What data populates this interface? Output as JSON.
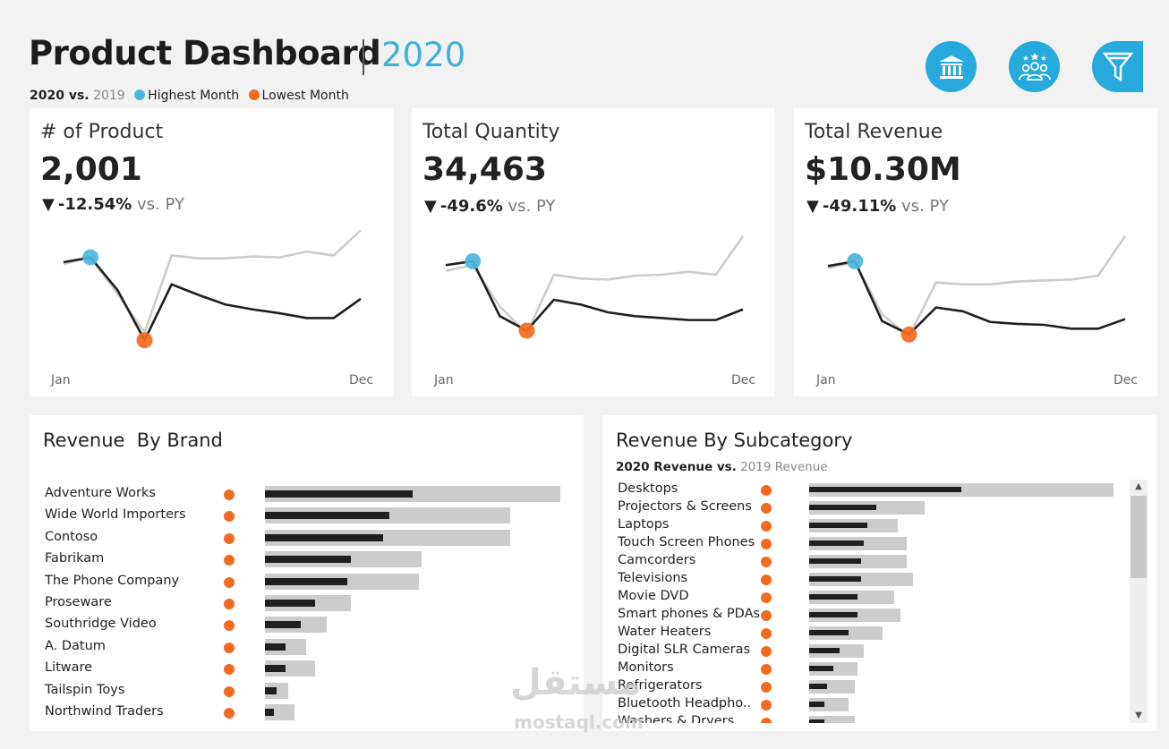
{
  "header": {
    "title": "Product Dashboard",
    "year": "2020",
    "legend": {
      "current": "2020 vs.",
      "previous": "2019",
      "highest": "Highest Month",
      "lowest": "Lowest Month"
    },
    "icons": [
      "bank-icon",
      "team-icon",
      "filter-icon"
    ]
  },
  "colors": {
    "accent": "#26a9dc",
    "highest": "#4cb6de",
    "lowest": "#f26b21",
    "current_line": "#1f1f1f",
    "previous_line": "#cccccc"
  },
  "kpis": [
    {
      "label": "# of Product",
      "value": "2,001",
      "delta": "-12.54%",
      "vs": "vs. PY",
      "axis_start": "Jan",
      "axis_end": "Dec",
      "cy": [
        0.91,
        0.96,
        0.62,
        0.1,
        0.68,
        0.57,
        0.47,
        0.42,
        0.38,
        0.33,
        0.33,
        0.53
      ],
      "py": [
        0.89,
        0.96,
        0.58,
        0.18,
        0.98,
        0.95,
        0.95,
        0.97,
        0.96,
        1.02,
        0.98,
        1.24
      ],
      "high_index": 1,
      "low_index": 3
    },
    {
      "label": "Total Quantity",
      "value": "34,463",
      "delta": "-49.6%",
      "vs": "vs. PY",
      "axis_start": "Jan",
      "axis_end": "Dec",
      "cy": [
        0.88,
        0.92,
        0.35,
        0.2,
        0.52,
        0.47,
        0.39,
        0.35,
        0.33,
        0.31,
        0.31,
        0.42
      ],
      "py": [
        0.82,
        0.88,
        0.45,
        0.17,
        0.78,
        0.74,
        0.73,
        0.77,
        0.78,
        0.81,
        0.78,
        1.18
      ],
      "high_index": 1,
      "low_index": 3
    },
    {
      "label": "Total Revenue",
      "value": "$10.30M",
      "delta": "-49.11%",
      "vs": "vs. PY",
      "axis_start": "Jan",
      "axis_end": "Dec",
      "cy": [
        0.87,
        0.92,
        0.3,
        0.16,
        0.44,
        0.4,
        0.29,
        0.27,
        0.26,
        0.22,
        0.22,
        0.32
      ],
      "py": [
        0.85,
        0.91,
        0.37,
        0.14,
        0.7,
        0.68,
        0.68,
        0.71,
        0.72,
        0.73,
        0.77,
        1.18
      ],
      "high_index": 1,
      "low_index": 3
    }
  ],
  "brand": {
    "title": "Revenue  By Brand",
    "max": 100,
    "rows": [
      {
        "name": "Adventure Works",
        "cy": 50,
        "py": 100
      },
      {
        "name": "Wide World Importers",
        "cy": 42,
        "py": 83
      },
      {
        "name": "Contoso",
        "cy": 40,
        "py": 83
      },
      {
        "name": "Fabrikam",
        "cy": 29,
        "py": 53
      },
      {
        "name": "The Phone Company",
        "cy": 28,
        "py": 52
      },
      {
        "name": "Proseware",
        "cy": 17,
        "py": 29
      },
      {
        "name": "Southridge Video",
        "cy": 12,
        "py": 21
      },
      {
        "name": "A. Datum",
        "cy": 7,
        "py": 14
      },
      {
        "name": "Litware",
        "cy": 7,
        "py": 17
      },
      {
        "name": "Tailspin Toys",
        "cy": 4,
        "py": 8
      },
      {
        "name": "Northwind Traders",
        "cy": 3,
        "py": 10
      }
    ]
  },
  "subcategory": {
    "title": "Revenue By Subcategory",
    "subtitle_current": "2020 Revenue vs.",
    "subtitle_previous": "2019 Revenue",
    "max": 100,
    "rows": [
      {
        "name": "Desktops",
        "cy": 50,
        "py": 100
      },
      {
        "name": "Projectors & Screens",
        "cy": 22,
        "py": 38
      },
      {
        "name": "Laptops",
        "cy": 19,
        "py": 29
      },
      {
        "name": "Touch Screen Phones",
        "cy": 18,
        "py": 32
      },
      {
        "name": "Camcorders",
        "cy": 17,
        "py": 32
      },
      {
        "name": "Televisions",
        "cy": 17,
        "py": 34
      },
      {
        "name": "Movie DVD",
        "cy": 16,
        "py": 28
      },
      {
        "name": "Smart phones & PDAs",
        "cy": 16,
        "py": 30
      },
      {
        "name": "Water Heaters",
        "cy": 13,
        "py": 24
      },
      {
        "name": "Digital SLR Cameras",
        "cy": 10,
        "py": 18
      },
      {
        "name": "Monitors",
        "cy": 8,
        "py": 16
      },
      {
        "name": "Refrigerators",
        "cy": 6,
        "py": 15
      },
      {
        "name": "Bluetooth Headpho..",
        "cy": 5,
        "py": 13
      },
      {
        "name": "Washers & Dryers",
        "cy": 5,
        "py": 15
      }
    ]
  },
  "watermark": {
    "arabic": "مستقل",
    "latin": "mostaql.com"
  }
}
